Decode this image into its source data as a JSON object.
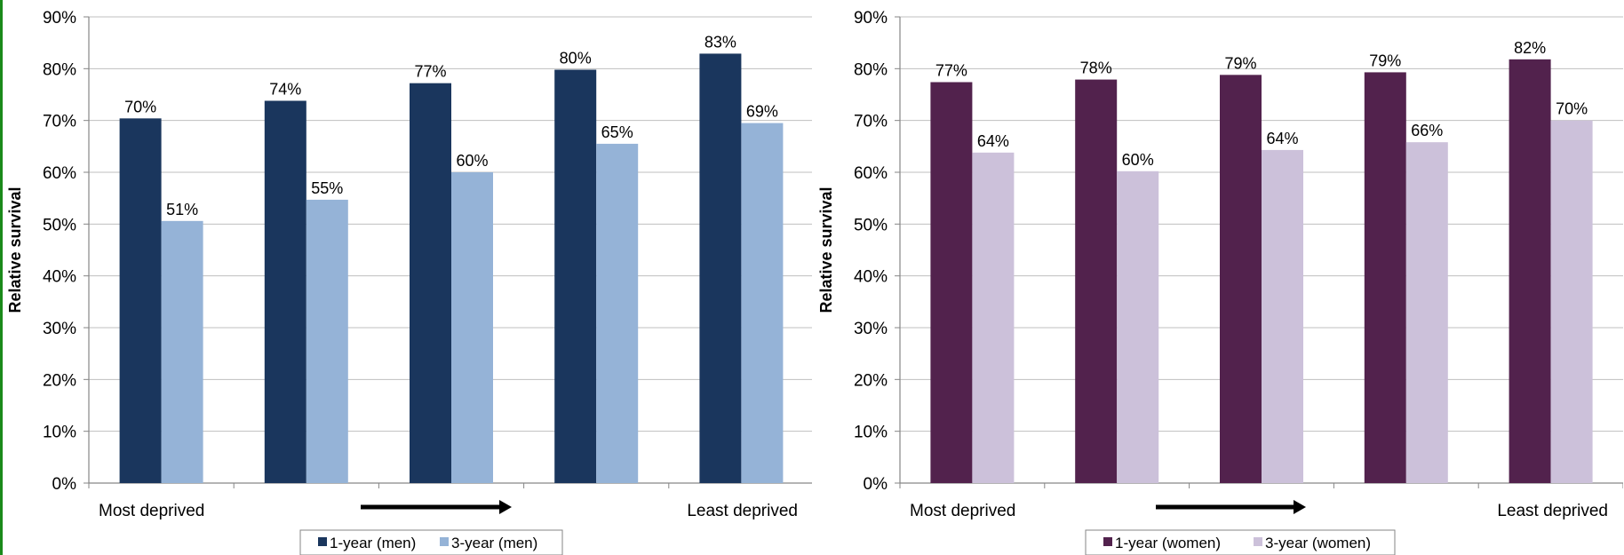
{
  "chart_data": [
    {
      "type": "bar",
      "categories": [
        "",
        "",
        "",
        "",
        ""
      ],
      "x_end_labels": {
        "left": "Most deprived",
        "right": "Least deprived"
      },
      "ylabel": "Relative survival",
      "xlabel": "",
      "title": "",
      "ylim": [
        0,
        90
      ],
      "yticks": [
        "0%",
        "10%",
        "20%",
        "30%",
        "40%",
        "50%",
        "60%",
        "70%",
        "80%",
        "90%"
      ],
      "grid": "horizontal",
      "legend_position": "bottom",
      "series": [
        {
          "name": "1-year (men)",
          "color": "#1a365d",
          "values": [
            70.4,
            73.8,
            77.2,
            79.8,
            82.9
          ],
          "labels": [
            "70%",
            "74%",
            "77%",
            "80%",
            "83%"
          ]
        },
        {
          "name": "3-year (men)",
          "color": "#95b3d7",
          "values": [
            50.6,
            54.7,
            60.0,
            65.5,
            69.5
          ],
          "labels": [
            "51%",
            "55%",
            "60%",
            "65%",
            "69%"
          ]
        }
      ]
    },
    {
      "type": "bar",
      "categories": [
        "",
        "",
        "",
        "",
        ""
      ],
      "x_end_labels": {
        "left": "Most deprived",
        "right": "Least deprived"
      },
      "ylabel": "Relative survival",
      "xlabel": "",
      "title": "",
      "ylim": [
        0,
        90
      ],
      "yticks": [
        "0%",
        "10%",
        "20%",
        "30%",
        "40%",
        "50%",
        "60%",
        "70%",
        "80%",
        "90%"
      ],
      "grid": "horizontal",
      "legend_position": "bottom",
      "series": [
        {
          "name": "1-year (women)",
          "color": "#52224d",
          "values": [
            77.4,
            77.9,
            78.8,
            79.3,
            81.8
          ],
          "labels": [
            "77%",
            "78%",
            "79%",
            "79%",
            "82%"
          ]
        },
        {
          "name": "3-year (women)",
          "color": "#ccc1da",
          "values": [
            63.8,
            60.2,
            64.3,
            65.8,
            70.0
          ],
          "labels": [
            "64%",
            "60%",
            "64%",
            "66%",
            "70%"
          ]
        }
      ]
    }
  ]
}
